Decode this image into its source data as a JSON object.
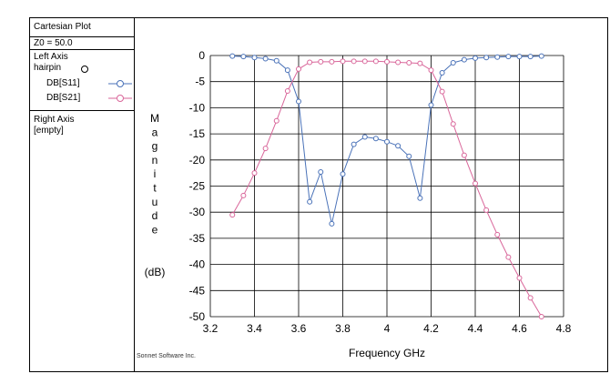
{
  "panel": {
    "title": "Cartesian Plot",
    "z0": "Z0 = 50.0",
    "left_axis_label": "Left Axis",
    "dataset_name": "hairpin",
    "traces": [
      {
        "name": "DB[S11]",
        "color": "#4a72b8"
      },
      {
        "name": "DB[S21]",
        "color": "#d9669a"
      }
    ],
    "right_axis_label": "Right Axis",
    "right_axis_value": "[empty]"
  },
  "footer": {
    "credit": "Sonnet Software Inc."
  },
  "chart_data": {
    "type": "line",
    "xlabel": "Frequency GHz",
    "ylabel_letters": [
      "M",
      "a",
      "g",
      "n",
      "i",
      "t",
      "u",
      "d",
      "e"
    ],
    "ylabel_unit": "(dB)",
    "xlim": [
      3.2,
      4.8
    ],
    "ylim": [
      -50,
      0
    ],
    "xticks": [
      "3.2",
      "3.4",
      "3.6",
      "3.8",
      "4",
      "4.2",
      "4.4",
      "4.6",
      "4.8"
    ],
    "yticks": [
      "0",
      "-5",
      "-10",
      "-15",
      "-20",
      "-25",
      "-30",
      "-35",
      "-40",
      "-45",
      "-50"
    ],
    "grid": true,
    "series": [
      {
        "name": "DB[S11]",
        "color": "#4a72b8",
        "x": [
          3.3,
          3.35,
          3.4,
          3.45,
          3.5,
          3.55,
          3.6,
          3.65,
          3.7,
          3.75,
          3.8,
          3.85,
          3.9,
          3.95,
          4.0,
          4.05,
          4.1,
          4.15,
          4.2,
          4.25,
          4.3,
          4.35,
          4.4,
          4.45,
          4.5,
          4.55,
          4.6,
          4.65,
          4.7
        ],
        "values": [
          -0.1,
          -0.2,
          -0.4,
          -0.6,
          -1.0,
          -2.8,
          -8.8,
          -28.0,
          -22.3,
          -32.2,
          -22.7,
          -17.0,
          -15.6,
          -15.9,
          -16.5,
          -17.3,
          -19.3,
          -27.3,
          -9.5,
          -3.3,
          -1.4,
          -0.8,
          -0.5,
          -0.4,
          -0.3,
          -0.2,
          -0.2,
          -0.2,
          -0.1
        ]
      },
      {
        "name": "DB[S21]",
        "color": "#d9669a",
        "x": [
          3.3,
          3.35,
          3.4,
          3.45,
          3.5,
          3.55,
          3.6,
          3.65,
          3.7,
          3.75,
          3.8,
          3.85,
          3.9,
          3.95,
          4.0,
          4.05,
          4.1,
          4.15,
          4.2,
          4.25,
          4.3,
          4.35,
          4.4,
          4.45,
          4.5,
          4.55,
          4.6,
          4.65,
          4.7
        ],
        "values": [
          -30.5,
          -26.8,
          -22.5,
          -17.8,
          -12.5,
          -6.8,
          -2.6,
          -1.3,
          -1.2,
          -1.2,
          -1.1,
          -1.1,
          -1.1,
          -1.1,
          -1.2,
          -1.3,
          -1.4,
          -1.5,
          -2.8,
          -6.9,
          -13.1,
          -19.1,
          -24.5,
          -29.6,
          -34.3,
          -38.6,
          -42.6,
          -46.4,
          -50.0
        ]
      }
    ]
  }
}
